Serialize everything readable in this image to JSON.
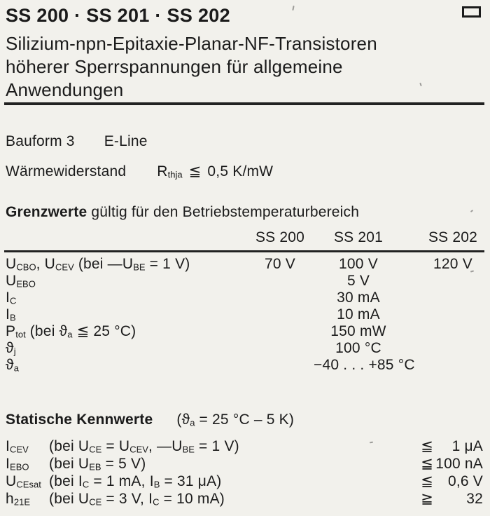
{
  "header": {
    "title": "SS 200 · SS 201 · SS 202",
    "corner_icon": "corner-box",
    "subtitle_lines": [
      "Silizium-npn-Epitaxie-Planar-NF-Transistoren",
      "höherer Sperrspannungen für allgemeine",
      "Anwendungen"
    ]
  },
  "info": {
    "bauform_label": "Bauform 3",
    "bauform_value": "E-Line",
    "thermal_label": "Wärmewiderstand",
    "thermal_symbol": "R~thja~",
    "thermal_relation": "≦",
    "thermal_value": "0,5 K/mW"
  },
  "limits": {
    "heading": "Grenzwerte",
    "heading_rest": "gültig für den Betriebstemperaturbereich",
    "columns": [
      "SS 200",
      "SS 201",
      "SS 202"
    ],
    "rows": [
      {
        "label": "U~CBO~, U~CEV~ (bei —U~BE~ = 1 V)",
        "ss200": "70 V",
        "ss201": "100 V",
        "ss202": "120 V"
      },
      {
        "label": "U~EBO~",
        "ss200": "",
        "ss201": "5 V",
        "ss202": ""
      },
      {
        "label": "I~C~",
        "ss200": "",
        "ss201": "30 mA",
        "ss202": ""
      },
      {
        "label": "I~B~",
        "ss200": "",
        "ss201": "10 mA",
        "ss202": ""
      },
      {
        "label": "P~tot~ (bei ϑ~a~ ≦ 25 °C)",
        "ss200": "",
        "ss201": "150 mW",
        "ss202": ""
      },
      {
        "label": "ϑ~j~",
        "ss200": "",
        "ss201": "100 °C",
        "ss202": ""
      },
      {
        "label": "ϑ~a~",
        "ss200": "",
        "ss201": "−40 . . . +85 °C",
        "ss202": ""
      }
    ]
  },
  "statics": {
    "heading": "Statische Kennwerte",
    "condition": "(ϑ~a~ = 25 °C – 5 K)",
    "rows": [
      {
        "symbol": "I~CEV~",
        "condition": "(bei U~CE~ = U~CEV~, —U~BE~ = 1 V)",
        "relation": "≦",
        "value": "1 μA"
      },
      {
        "symbol": "I~EBO~",
        "condition": "(bei U~EB~ = 5 V)",
        "relation": "≦",
        "value": "100 nA"
      },
      {
        "symbol": "U~CEsat~",
        "condition": "(bei I~C~ = 1 mA, I~B~ = 31 μA)",
        "relation": "≦",
        "value": "0,6 V"
      },
      {
        "symbol": "h~21E~",
        "condition": "(bei U~CE~ = 3 V, I~C~ = 10 mA)",
        "relation": "≧",
        "value": "32"
      }
    ]
  }
}
